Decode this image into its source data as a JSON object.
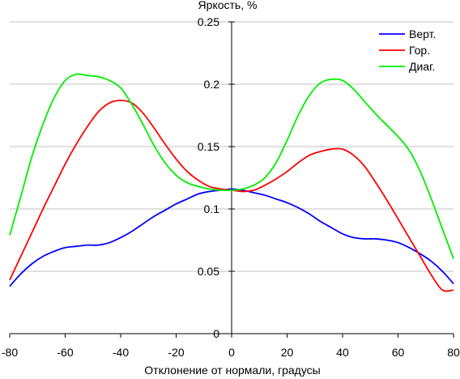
{
  "chart_data": {
    "type": "line",
    "title": "",
    "ylabel": "Яркость, %",
    "xlabel": "Отклонение от нормали, градусы",
    "xlim": [
      -80,
      80
    ],
    "ylim": [
      0,
      0.25
    ],
    "x_ticks": [
      -80,
      -60,
      -40,
      -20,
      0,
      20,
      40,
      60,
      80
    ],
    "y_ticks": [
      0,
      0.05,
      0.1,
      0.15,
      0.2,
      0.25
    ],
    "x_tick_labels": [
      "-80",
      "-60",
      "-40",
      "-20",
      "0",
      "20",
      "40",
      "60",
      "80"
    ],
    "y_tick_labels": [
      "0",
      "0.05",
      "0.1",
      "0.15",
      "0.2",
      "0.25"
    ],
    "grid": "horizontal",
    "legend_position": "top-right",
    "series": [
      {
        "name": "Верт.",
        "color": "#0000ff",
        "x": [
          -80,
          -76,
          -72,
          -68,
          -64,
          -60,
          -56,
          -52,
          -48,
          -44,
          -40,
          -36,
          -32,
          -28,
          -24,
          -20,
          -16,
          -12,
          -8,
          -4,
          0,
          4,
          8,
          12,
          16,
          20,
          24,
          28,
          32,
          36,
          40,
          44,
          48,
          52,
          56,
          60,
          64,
          68,
          72,
          76,
          80
        ],
        "y": [
          0.038,
          0.048,
          0.056,
          0.062,
          0.066,
          0.069,
          0.07,
          0.071,
          0.071,
          0.073,
          0.077,
          0.082,
          0.088,
          0.094,
          0.099,
          0.104,
          0.108,
          0.112,
          0.114,
          0.115,
          0.116,
          0.115,
          0.113,
          0.111,
          0.108,
          0.105,
          0.101,
          0.096,
          0.09,
          0.085,
          0.08,
          0.077,
          0.076,
          0.076,
          0.075,
          0.073,
          0.069,
          0.064,
          0.058,
          0.05,
          0.04
        ]
      },
      {
        "name": "Гор.",
        "color": "#ff0000",
        "x": [
          -80,
          -76,
          -72,
          -68,
          -64,
          -60,
          -56,
          -52,
          -48,
          -44,
          -40,
          -36,
          -32,
          -28,
          -24,
          -20,
          -16,
          -12,
          -8,
          -4,
          0,
          4,
          8,
          12,
          16,
          20,
          24,
          28,
          32,
          36,
          40,
          44,
          48,
          52,
          56,
          60,
          64,
          68,
          72,
          76,
          80
        ],
        "y": [
          0.043,
          0.062,
          0.081,
          0.1,
          0.118,
          0.136,
          0.152,
          0.166,
          0.178,
          0.185,
          0.187,
          0.185,
          0.177,
          0.165,
          0.152,
          0.14,
          0.13,
          0.123,
          0.118,
          0.116,
          0.115,
          0.114,
          0.115,
          0.119,
          0.124,
          0.13,
          0.137,
          0.143,
          0.146,
          0.148,
          0.148,
          0.143,
          0.134,
          0.121,
          0.107,
          0.092,
          0.077,
          0.062,
          0.047,
          0.035,
          0.035
        ]
      },
      {
        "name": "Диаг.",
        "color": "#00ee00",
        "x": [
          -80,
          -76,
          -72,
          -68,
          -64,
          -60,
          -56,
          -52,
          -48,
          -44,
          -40,
          -36,
          -32,
          -28,
          -24,
          -20,
          -16,
          -12,
          -8,
          -4,
          0,
          4,
          8,
          12,
          16,
          20,
          24,
          28,
          32,
          36,
          40,
          44,
          48,
          52,
          56,
          60,
          64,
          68,
          72,
          76,
          80
        ],
        "y": [
          0.079,
          0.11,
          0.142,
          0.168,
          0.189,
          0.203,
          0.208,
          0.207,
          0.206,
          0.203,
          0.197,
          0.184,
          0.168,
          0.151,
          0.137,
          0.127,
          0.121,
          0.118,
          0.116,
          0.115,
          0.115,
          0.116,
          0.119,
          0.125,
          0.137,
          0.155,
          0.175,
          0.191,
          0.201,
          0.204,
          0.203,
          0.196,
          0.186,
          0.176,
          0.167,
          0.158,
          0.147,
          0.13,
          0.108,
          0.084,
          0.06
        ]
      }
    ]
  }
}
